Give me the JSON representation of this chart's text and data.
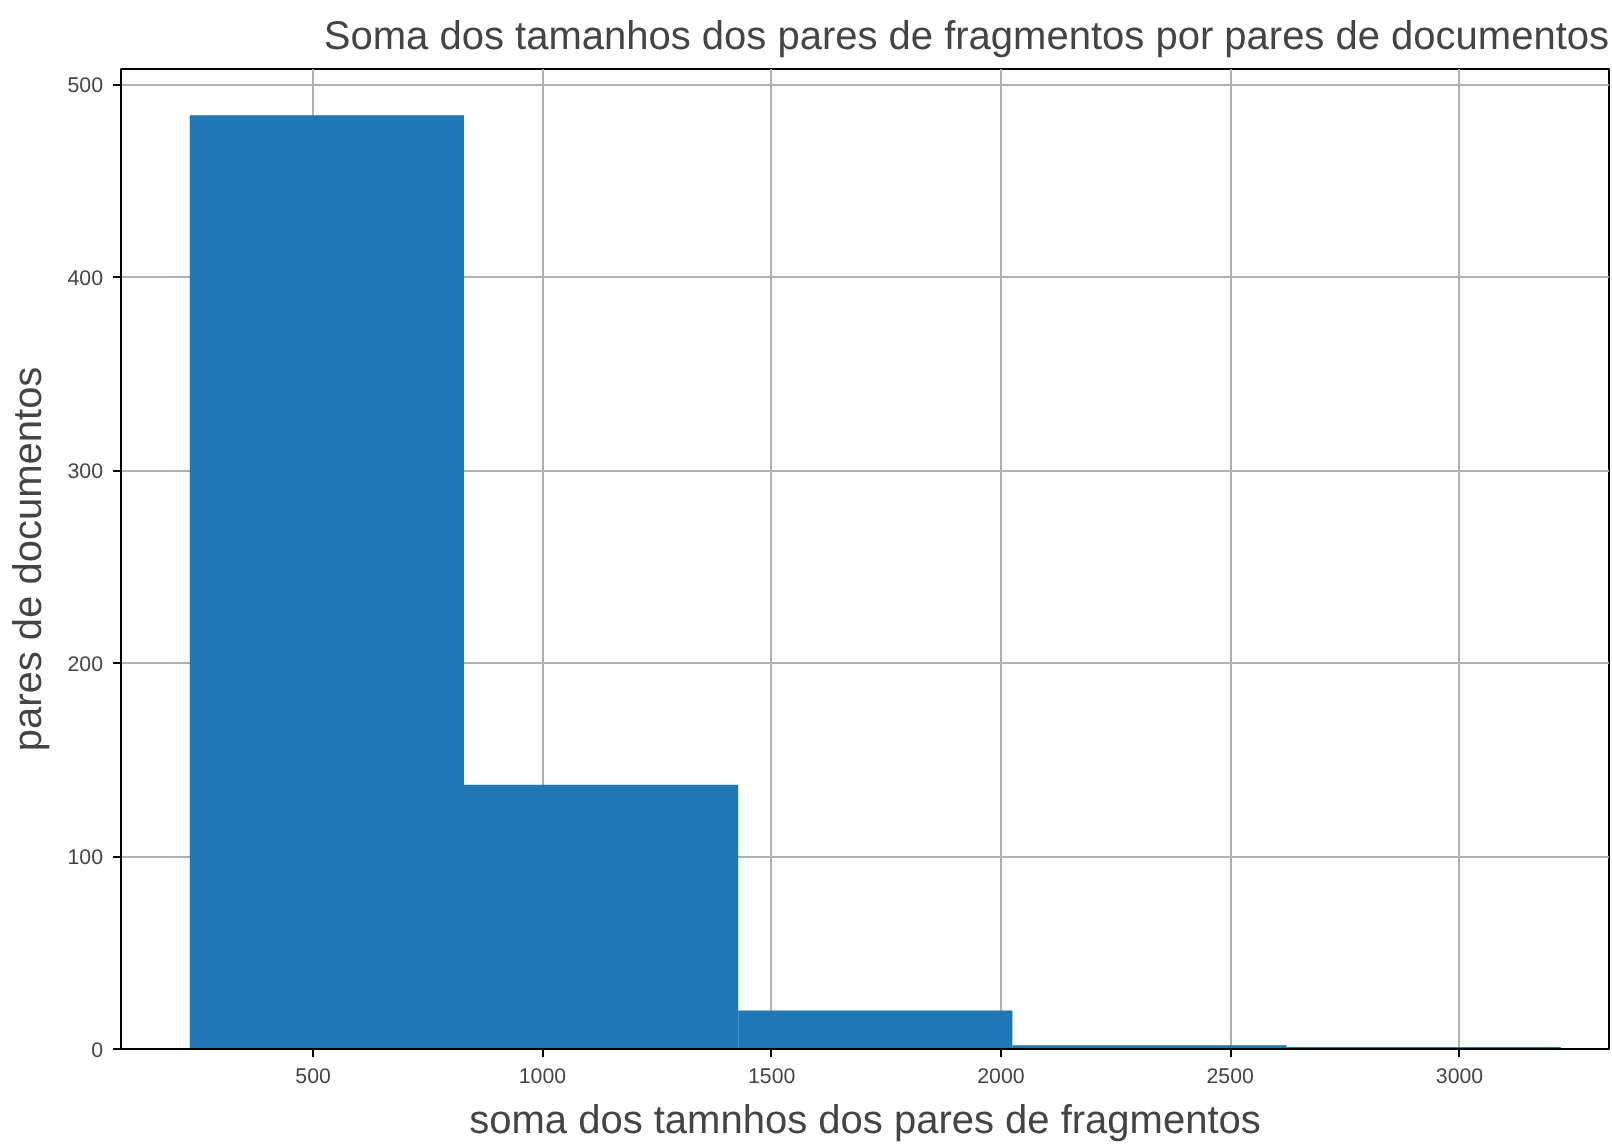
{
  "chart_data": {
    "type": "histogram",
    "title": "Soma dos tamanhos dos pares de fragmentos por pares de documentos",
    "xlabel": "soma dos tamnhos dos pares de fragmentos",
    "ylabel": "pares de documentos",
    "bins": [
      231,
      829,
      1427,
      2025,
      2623,
      3221
    ],
    "values": [
      484,
      137,
      20,
      2,
      1
    ],
    "color": "#1f77b4",
    "xlim": [
      81,
      3326
    ],
    "ylim": [
      0,
      508
    ],
    "xticks": [
      500,
      1000,
      1500,
      2000,
      2500,
      3000
    ],
    "yticks": [
      0,
      100,
      200,
      300,
      400,
      500
    ],
    "grid": true
  }
}
